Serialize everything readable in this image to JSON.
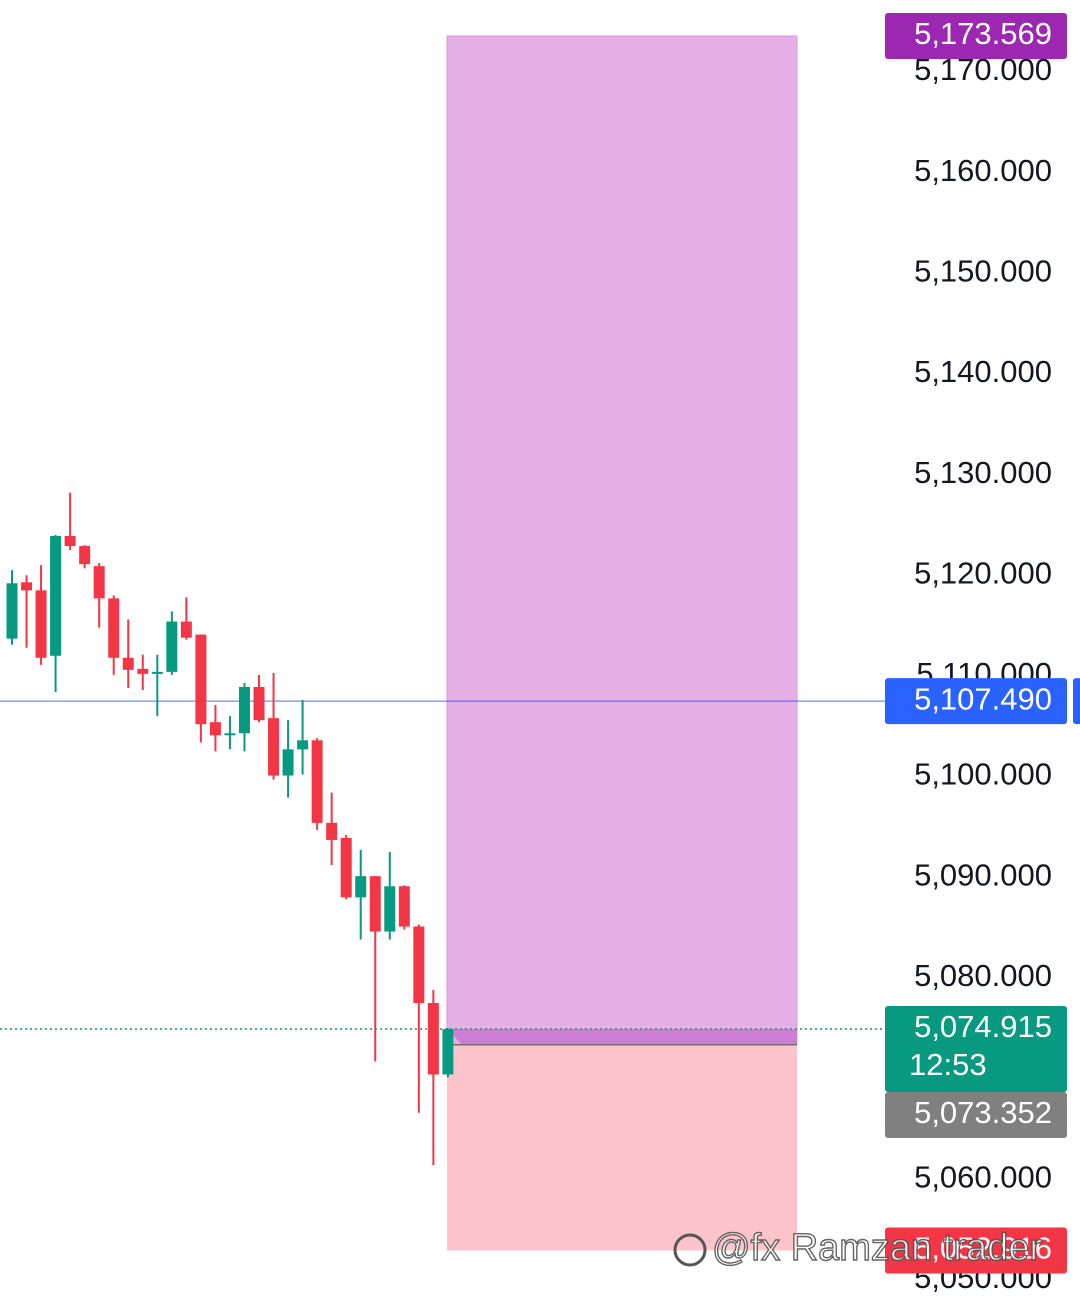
{
  "chart_data": {
    "type": "candlestick",
    "up_color": "#089981",
    "down_color": "#f23645",
    "ylim": [
      5047.2,
      5177.15
    ],
    "yticks": [
      {
        "value": 5050,
        "label": "5,050.000"
      },
      {
        "value": 5060,
        "label": "5,060.000"
      },
      {
        "value": 5070,
        "label": "5,070.000"
      },
      {
        "value": 5080,
        "label": "5,080.000"
      },
      {
        "value": 5090,
        "label": "5,090.000"
      },
      {
        "value": 5100,
        "label": "5,100.000"
      },
      {
        "value": 5110,
        "label": "5,110.000"
      },
      {
        "value": 5120,
        "label": "5,120.000"
      },
      {
        "value": 5130,
        "label": "5,130.000"
      },
      {
        "value": 5140,
        "label": "5,140.000"
      },
      {
        "value": 5150,
        "label": "5,150.000"
      },
      {
        "value": 5160,
        "label": "5,160.000"
      },
      {
        "value": 5170,
        "label": "5,170.000"
      }
    ],
    "open": [
      5113.7,
      5119.3,
      5118.5,
      5112.0,
      5123.9,
      5122.9,
      5120.9,
      5117.7,
      5111.8,
      5110.7,
      5110.2,
      5110.4,
      5115.4,
      5114.1,
      5105.4,
      5104.1,
      5104.3,
      5108.9,
      5105.8,
      5100.1,
      5102.7,
      5103.6,
      5095.4,
      5093.9,
      5088.0,
      5090.1,
      5084.6,
      5089.1,
      5085.1,
      5077.5,
      5070.4
    ],
    "high": [
      5120.5,
      5120.0,
      5121.0,
      5124.0,
      5128.2,
      5123.0,
      5121.2,
      5118.0,
      5115.6,
      5112.1,
      5112.1,
      5116.4,
      5117.8,
      5114.1,
      5107.1,
      5106.0,
      5109.3,
      5110.1,
      5110.3,
      5105.6,
      5107.6,
      5103.8,
      5098.4,
      5094.2,
      5092.7,
      5090.1,
      5092.5,
      5089.2,
      5085.3,
      5078.8,
      5075.0
    ],
    "low": [
      5113.1,
      5112.8,
      5111.1,
      5108.4,
      5122.5,
      5120.7,
      5114.8,
      5110.1,
      5108.8,
      5108.6,
      5106.0,
      5110.1,
      5113.6,
      5103.4,
      5102.5,
      5102.7,
      5102.5,
      5105.4,
      5099.7,
      5097.9,
      5100.2,
      5094.7,
      5091.2,
      5087.8,
      5083.8,
      5071.7,
      5083.8,
      5084.8,
      5066.6,
      5061.4,
      5070.1
    ],
    "close": [
      5119.2,
      5118.5,
      5111.8,
      5123.9,
      5122.9,
      5121.1,
      5117.7,
      5111.8,
      5110.6,
      5110.2,
      5110.4,
      5115.4,
      5113.8,
      5105.2,
      5104.1,
      5104.3,
      5108.9,
      5105.6,
      5100.1,
      5102.7,
      5103.6,
      5095.4,
      5093.7,
      5088.0,
      5090.1,
      5084.6,
      5089.1,
      5085.1,
      5077.5,
      5070.4,
      5074.9
    ],
    "position": {
      "target": {
        "value": 5173.569,
        "label": "5,173.569",
        "color": "#9c27b0"
      },
      "entry": {
        "value": 5073.352,
        "label": "5,073.352",
        "color": "#808080"
      },
      "stop": {
        "value": 5052.916,
        "label": "5,052.916",
        "color": "#f23645"
      },
      "profit_color": "#e6b0e6",
      "loss_color": "#fdc5cb"
    },
    "price_line": {
      "value": 5107.49,
      "label": "5,107.490",
      "color": "#2962ff"
    },
    "current_price": {
      "value": 5074.915,
      "label": "5,074.915",
      "time": "12:53",
      "color": "#089981"
    },
    "watermark": "@fx Ramzan trader"
  }
}
